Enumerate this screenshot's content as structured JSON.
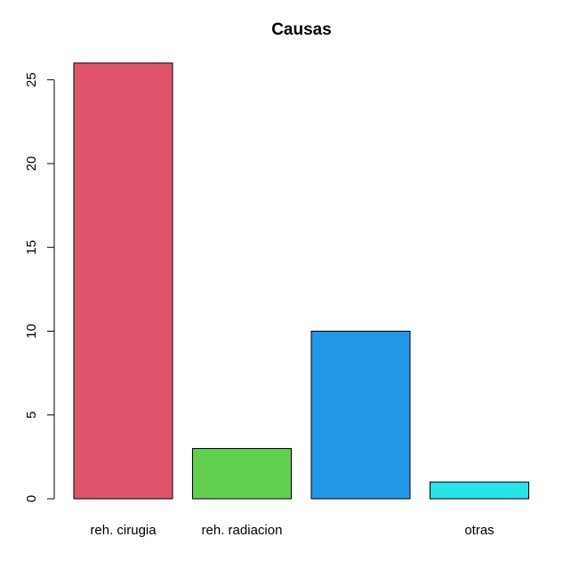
{
  "chart_data": {
    "type": "bar",
    "title": "Causas",
    "xlabel": "",
    "ylabel": "",
    "categories": [
      "reh. cirugia",
      "reh. radiacion",
      "",
      "otras"
    ],
    "values": [
      26,
      3,
      10,
      1
    ],
    "colors": [
      "#DF536B",
      "#61D04F",
      "#2297E6",
      "#28E2E5"
    ],
    "ylim": [
      0,
      26
    ],
    "yticks": [
      0,
      5,
      10,
      15,
      20,
      25
    ],
    "grid": false,
    "legend": "none"
  }
}
